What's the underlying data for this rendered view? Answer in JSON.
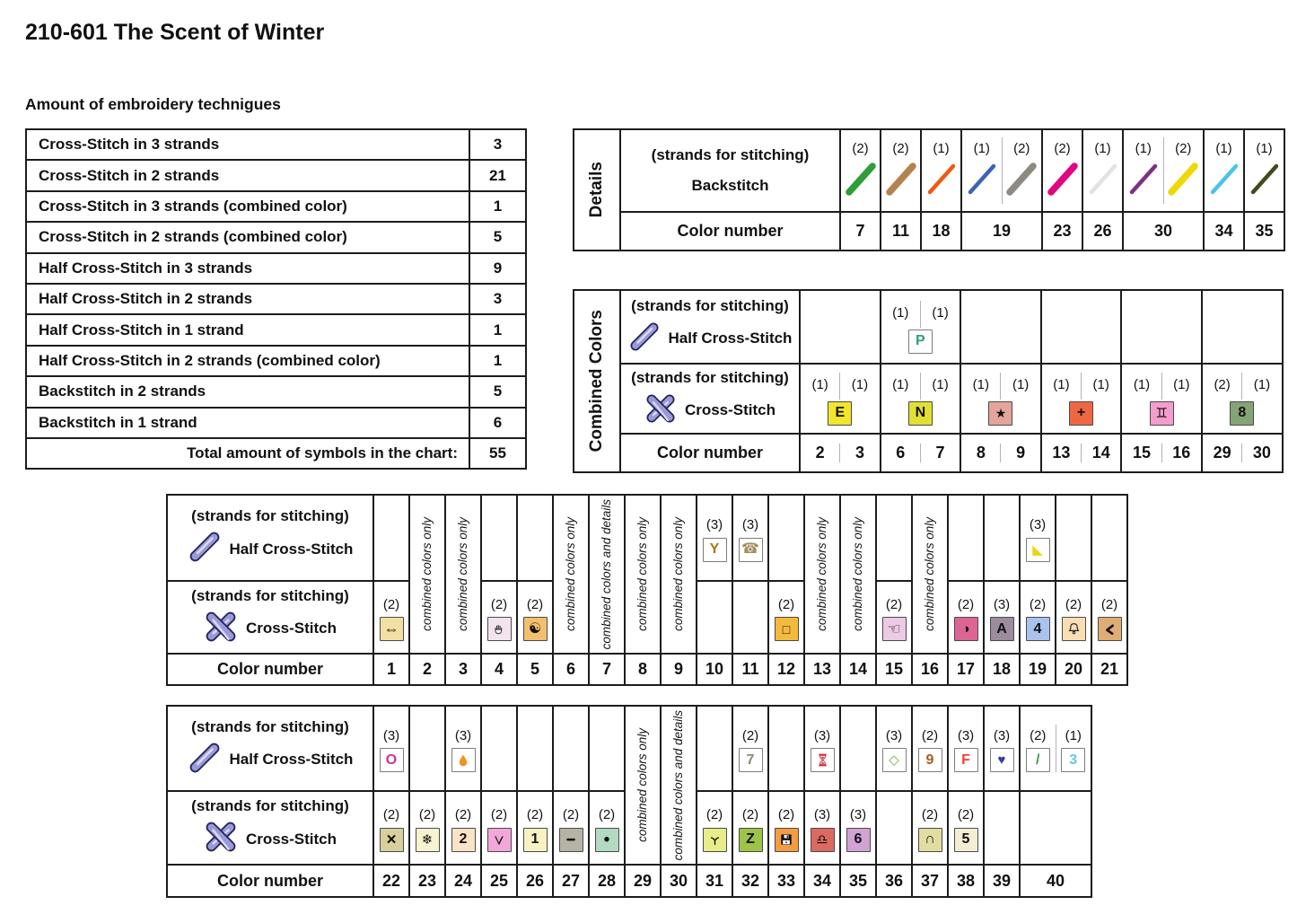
{
  "page": {
    "title": "210-601 The Scent of Winter",
    "subtitle": "Amount of embroidery technigues"
  },
  "techniques": {
    "rows": [
      {
        "label": "Cross-Stitch in 3 strands",
        "value": "3"
      },
      {
        "label": "Cross-Stitch in 2 strands",
        "value": "21"
      },
      {
        "label": "Cross-Stitch in 3 strands (combined color)",
        "value": "1"
      },
      {
        "label": "Cross-Stitch in 2 strands (combined color)",
        "value": "5"
      },
      {
        "label": "Half Cross-Stitch in 3 strands",
        "value": "9"
      },
      {
        "label": "Half Cross-Stitch in 2 strands",
        "value": "3"
      },
      {
        "label": "Half Cross-Stitch in 1 strand",
        "value": "1"
      },
      {
        "label": "Half Cross-Stitch in 2 strands (combined color)",
        "value": "1"
      },
      {
        "label": "Backstitch in 2 strands",
        "value": "5"
      },
      {
        "label": "Backstitch in 1 strand",
        "value": "6"
      },
      {
        "label": "Total amount of symbols in the chart:",
        "value": "55",
        "total": true
      }
    ]
  },
  "details": {
    "side_label": "Details",
    "strands_header": "(strands for stitching)",
    "technique_label": "Backstitch",
    "color_number_label": "Color number",
    "columns": [
      {
        "color_number": "7",
        "lines": [
          {
            "strands": "(2)",
            "color": "#2e9e38",
            "thick": true
          }
        ]
      },
      {
        "color_number": "11",
        "lines": [
          {
            "strands": "(2)",
            "color": "#b5824f",
            "thick": true
          }
        ]
      },
      {
        "color_number": "18",
        "lines": [
          {
            "strands": "(1)",
            "color": "#f05a14",
            "thick": false
          }
        ]
      },
      {
        "color_number": "19",
        "lines": [
          {
            "strands": "(1)",
            "color": "#3c64b4",
            "thick": false
          },
          {
            "strands": "(2)",
            "color": "#8e8a82",
            "thick": true
          }
        ]
      },
      {
        "color_number": "23",
        "lines": [
          {
            "strands": "(2)",
            "color": "#e00580",
            "thick": true
          }
        ]
      },
      {
        "color_number": "26",
        "lines": [
          {
            "strands": "(1)",
            "color": "#e2e2e2",
            "thick": false
          }
        ]
      },
      {
        "color_number": "30",
        "lines": [
          {
            "strands": "(1)",
            "color": "#7c3183",
            "thick": false
          },
          {
            "strands": "(2)",
            "color": "#eed906",
            "thick": true
          }
        ]
      },
      {
        "color_number": "34",
        "lines": [
          {
            "strands": "(1)",
            "color": "#4cc3ea",
            "thick": false
          }
        ]
      },
      {
        "color_number": "35",
        "lines": [
          {
            "strands": "(1)",
            "color": "#44491e",
            "thick": false
          }
        ]
      }
    ]
  },
  "combined": {
    "side_label": "Combined Colors",
    "strands_header": "(strands for stitching)",
    "half_label": "Half Cross-Stitch",
    "cross_label": "Cross-Stitch",
    "color_number_label": "Color number",
    "pairs": [
      {
        "numbers": [
          "2",
          "3"
        ],
        "half": null,
        "cross": {
          "strands": [
            "(1)",
            "(1)"
          ],
          "symbol": {
            "glyph": "E",
            "box": "#f2e52c",
            "color": "#111111",
            "bold": true
          }
        }
      },
      {
        "numbers": [
          "6",
          "7"
        ],
        "half": {
          "strands": [
            "(1)",
            "(1)"
          ],
          "symbol": {
            "glyph": "P",
            "box": "#ffffff",
            "color": "#2aa27c",
            "bold": true
          }
        },
        "cross": {
          "strands": [
            "(1)",
            "(1)"
          ],
          "symbol": {
            "glyph": "N",
            "box": "#e2df33",
            "color": "#111111",
            "bold": true
          }
        }
      },
      {
        "numbers": [
          "8",
          "9"
        ],
        "half": null,
        "cross": {
          "strands": [
            "(1)",
            "(1)"
          ],
          "symbol": {
            "glyph": "★",
            "box": "#e2a49b",
            "color": "#111111"
          }
        }
      },
      {
        "numbers": [
          "13",
          "14"
        ],
        "half": null,
        "cross": {
          "strands": [
            "(1)",
            "(1)"
          ],
          "symbol": {
            "glyph": "+",
            "box": "#ee6743",
            "color": "#111111",
            "bold": true
          }
        }
      },
      {
        "numbers": [
          "15",
          "16"
        ],
        "half": null,
        "cross": {
          "strands": [
            "(1)",
            "(1)"
          ],
          "symbol": {
            "glyph": "♊",
            "box": "#f49ccb",
            "color": "#111111"
          }
        }
      },
      {
        "numbers": [
          "29",
          "30"
        ],
        "half": null,
        "cross": {
          "strands": [
            "(2)",
            "(1)"
          ],
          "symbol": {
            "glyph": "8",
            "box": "#85a475",
            "color": "#111111",
            "bold": true
          }
        }
      }
    ]
  },
  "palette1": {
    "strands_header": "(strands for stitching)",
    "half_label": "Half Cross-Stitch",
    "cross_label": "Cross-Stitch",
    "color_number_label": "Color number",
    "columns": [
      {
        "number": "1",
        "cross": {
          "strands": "(2)",
          "symbol": {
            "glyph": "⇔",
            "box": "#f2dfa2",
            "color": "#111111"
          }
        }
      },
      {
        "number": "2",
        "span": "combined colors only"
      },
      {
        "number": "3",
        "span": "combined colors only"
      },
      {
        "number": "4",
        "cross": {
          "strands": "(2)",
          "symbol": {
            "icon": "hand",
            "box": "#f3e3ef",
            "color": "#333333"
          }
        }
      },
      {
        "number": "5",
        "cross": {
          "strands": "(2)",
          "symbol": {
            "glyph": "☯",
            "box": "#f2c06d",
            "color": "#111111"
          }
        }
      },
      {
        "number": "6",
        "span": "combined colors only"
      },
      {
        "number": "7",
        "span": "combined colors and details"
      },
      {
        "number": "8",
        "span": "combined colors only"
      },
      {
        "number": "9",
        "span": "combined colors only"
      },
      {
        "number": "10",
        "half": {
          "strands": "(3)",
          "symbol": {
            "glyph": "Y",
            "box": "#ffffff",
            "color": "#a5781e",
            "bold": true
          }
        }
      },
      {
        "number": "11",
        "half": {
          "strands": "(3)",
          "symbol": {
            "glyph": "☎",
            "box": "#ffffff",
            "color": "#a08f60"
          }
        }
      },
      {
        "number": "12",
        "cross": {
          "strands": "(2)",
          "symbol": {
            "glyph": "□",
            "box": "#f5b93e",
            "color": "#111111",
            "bold": true
          }
        }
      },
      {
        "number": "13",
        "span": "combined colors only"
      },
      {
        "number": "14",
        "span": "combined colors only"
      },
      {
        "number": "15",
        "cross": {
          "strands": "(2)",
          "symbol": {
            "glyph": "☜",
            "box": "#eccae4",
            "color": "#111111"
          }
        }
      },
      {
        "number": "16",
        "span": "combined colors only"
      },
      {
        "number": "17",
        "cross": {
          "strands": "(2)",
          "symbol": {
            "glyph": "◑",
            "box": "#dd6596",
            "color": "#111111"
          }
        }
      },
      {
        "number": "18",
        "cross": {
          "strands": "(3)",
          "symbol": {
            "glyph": "A",
            "box": "#9c8c9c",
            "color": "#111111",
            "bold": true
          }
        }
      },
      {
        "number": "19",
        "half": {
          "strands": "(3)",
          "symbol": {
            "glyph": "◣",
            "box": "#ffffff",
            "color": "#e8d70f"
          }
        },
        "cross": {
          "strands": "(2)",
          "symbol": {
            "glyph": "4",
            "box": "#a9c3ee",
            "color": "#111111",
            "bold": true
          }
        }
      },
      {
        "number": "20",
        "cross": {
          "strands": "(2)",
          "symbol": {
            "icon": "bell",
            "box": "#f8deb2",
            "color": "#222222"
          }
        }
      },
      {
        "number": "21",
        "cross": {
          "strands": "(2)",
          "symbol": {
            "icon": "chevron",
            "box": "#dfac73",
            "color": "#111111"
          }
        }
      }
    ]
  },
  "palette2": {
    "strands_header": "(strands for stitching)",
    "half_label": "Half Cross-Stitch",
    "cross_label": "Cross-Stitch",
    "color_number_label": "Color number",
    "columns": [
      {
        "number": "22",
        "half": {
          "strands": "(3)",
          "symbol": {
            "glyph": "O",
            "box": "#ffffff",
            "color": "#c4379c",
            "bold": true
          }
        },
        "cross": {
          "strands": "(2)",
          "symbol": {
            "glyph": "×",
            "box": "#d8cf9d",
            "color": "#111111",
            "bold": true
          }
        }
      },
      {
        "number": "23",
        "cross": {
          "strands": "(2)",
          "symbol": {
            "glyph": "❄",
            "box": "#f6f3d0",
            "color": "#111111"
          }
        }
      },
      {
        "number": "24",
        "half": {
          "strands": "(3)",
          "symbol": {
            "icon": "droplet",
            "box": "#ffffff",
            "color": "#f29222"
          }
        },
        "cross": {
          "strands": "(2)",
          "symbol": {
            "glyph": "2",
            "box": "#fae3c6",
            "color": "#111111",
            "bold": true
          }
        }
      },
      {
        "number": "25",
        "cross": {
          "strands": "(2)",
          "symbol": {
            "icon": "vee",
            "box": "#f1a7d7",
            "color": "#222222"
          }
        }
      },
      {
        "number": "26",
        "cross": {
          "strands": "(2)",
          "symbol": {
            "glyph": "1",
            "box": "#f7f2c1",
            "color": "#111111",
            "bold": true
          }
        }
      },
      {
        "number": "27",
        "cross": {
          "strands": "(2)",
          "symbol": {
            "icon": "dash",
            "box": "#b6b2a6",
            "color": "#111111"
          }
        }
      },
      {
        "number": "28",
        "cross": {
          "strands": "(2)",
          "symbol": {
            "glyph": "•",
            "box": "#b3d9c2",
            "color": "#111111",
            "bold": true
          }
        }
      },
      {
        "number": "29",
        "span": "combined colors only"
      },
      {
        "number": "30",
        "span": "combined colors and details"
      },
      {
        "number": "31",
        "cross": {
          "strands": "(2)",
          "symbol": {
            "icon": "inverted-y",
            "box": "#e6ed89",
            "color": "#111111"
          }
        }
      },
      {
        "number": "32",
        "half": {
          "strands": "(2)",
          "symbol": {
            "glyph": "7",
            "box": "#ffffff",
            "color": "#8b8b6b",
            "bold": true
          }
        },
        "cross": {
          "strands": "(2)",
          "symbol": {
            "glyph": "Z",
            "box": "#9dc446",
            "color": "#111111",
            "bold": true
          }
        }
      },
      {
        "number": "33",
        "cross": {
          "strands": "(2)",
          "symbol": {
            "icon": "floppy",
            "box": "#f59b42",
            "color": "#111111"
          }
        }
      },
      {
        "number": "34",
        "half": {
          "strands": "(3)",
          "symbol": {
            "icon": "hourglass",
            "box": "#ffffff",
            "color": "#cc3340"
          }
        },
        "cross": {
          "strands": "(3)",
          "symbol": {
            "glyph": "♎",
            "box": "#dd6a61",
            "color": "#111111"
          }
        }
      },
      {
        "number": "35",
        "cross": {
          "strands": "(3)",
          "symbol": {
            "glyph": "6",
            "box": "#d1a3d5",
            "color": "#111111",
            "bold": true
          }
        }
      },
      {
        "number": "36",
        "half": {
          "strands": "(3)",
          "symbol": {
            "glyph": "◇",
            "box": "#ffffff",
            "color": "#73a856",
            "bold": true
          }
        }
      },
      {
        "number": "37",
        "half": {
          "strands": "(2)",
          "symbol": {
            "glyph": "9",
            "box": "#ffffff",
            "color": "#a5611c",
            "bold": true
          }
        },
        "cross": {
          "strands": "(2)",
          "symbol": {
            "glyph": "∩",
            "box": "#e2dda1",
            "color": "#111111",
            "bold": true
          }
        }
      },
      {
        "number": "38",
        "half": {
          "strands": "(3)",
          "symbol": {
            "glyph": "F",
            "box": "#ffffff",
            "color": "#ee4333",
            "bold": true
          }
        },
        "cross": {
          "strands": "(2)",
          "symbol": {
            "glyph": "5",
            "box": "#f3edd2",
            "color": "#111111",
            "bold": true
          }
        }
      },
      {
        "number": "39",
        "half": {
          "strands": "(3)",
          "symbol": {
            "glyph": "♥",
            "box": "#ffffff",
            "color": "#3b3ba5"
          }
        }
      },
      {
        "number": "40",
        "width": 2,
        "half_items": [
          {
            "strands": "(2)",
            "symbol": {
              "glyph": "/",
              "box": "#ffffff",
              "color": "#3f9e44",
              "bold": true
            }
          },
          {
            "strands": "(1)",
            "symbol": {
              "glyph": "3",
              "box": "#ffffff",
              "color": "#66c4e8",
              "bold": true
            }
          }
        ]
      }
    ]
  }
}
